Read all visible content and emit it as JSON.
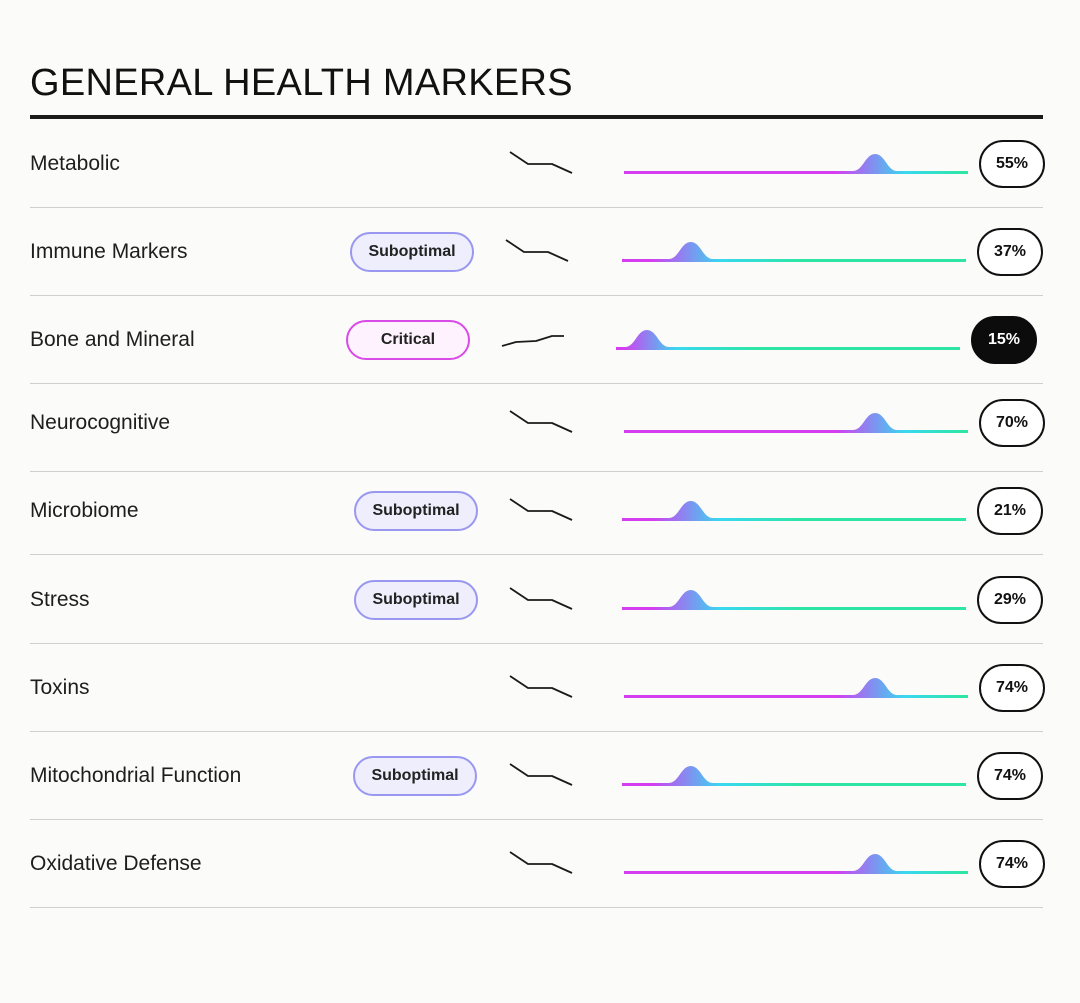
{
  "header": {
    "title": "GENERAL HEALTH MARKERS"
  },
  "colors": {
    "gradient_start": "#d63cf0",
    "gradient_mid": "#38d8f0",
    "gradient_end": "#2ee6a3",
    "suboptimal_border": "#9a97f0",
    "critical_border": "#d94be6"
  },
  "markers": [
    {
      "label": "Metabolic",
      "badge": "",
      "value": "55%",
      "level": 0.73,
      "trend": "down",
      "highlighted": false
    },
    {
      "label": "Immune Markers",
      "badge": "Suboptimal",
      "value": "37%",
      "level": 0.2,
      "trend": "down",
      "highlighted": false
    },
    {
      "label": "Bone and Mineral",
      "badge": "Critical",
      "value": "15%",
      "level": 0.09,
      "trend": "up",
      "highlighted": true
    },
    {
      "label": "Neurocognitive",
      "badge": "",
      "value": "70%",
      "level": 0.73,
      "trend": "down",
      "highlighted": false
    },
    {
      "label": "Microbiome",
      "badge": "Suboptimal",
      "value": "21%",
      "level": 0.2,
      "trend": "down",
      "highlighted": false
    },
    {
      "label": "Stress",
      "badge": "Suboptimal",
      "value": "29%",
      "level": 0.2,
      "trend": "down",
      "highlighted": false
    },
    {
      "label": "Toxins",
      "badge": "",
      "value": "74%",
      "level": 0.73,
      "trend": "down",
      "highlighted": false
    },
    {
      "label": "Mitochondrial Function",
      "badge": "Suboptimal",
      "value": "74%",
      "level": 0.2,
      "trend": "down",
      "highlighted": false
    },
    {
      "label": "Oxidative Defense",
      "badge": "",
      "value": "74%",
      "level": 0.73,
      "trend": "down",
      "highlighted": false
    }
  ]
}
